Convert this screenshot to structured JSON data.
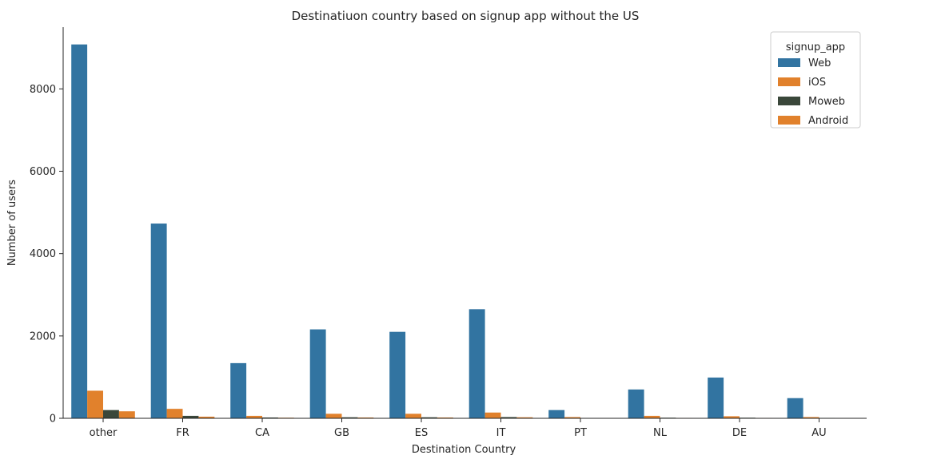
{
  "chart_data": {
    "type": "bar",
    "title": "Destinatiuon country based on signup app without the US",
    "xlabel": "Destination Country",
    "ylabel": "Number of users",
    "ylim": [
      0,
      9500
    ],
    "yticks": [
      0,
      2000,
      4000,
      6000,
      8000
    ],
    "grid": false,
    "legend": {
      "title": "signup_app",
      "placement": "top-right"
    },
    "categories": [
      "other",
      "FR",
      "CA",
      "GB",
      "ES",
      "IT",
      "PT",
      "NL",
      "DE",
      "AU"
    ],
    "series": [
      {
        "name": "Web",
        "color": "#3274a1",
        "values": [
          9080,
          4730,
          1340,
          2160,
          2100,
          2650,
          200,
          700,
          990,
          490
        ]
      },
      {
        "name": "iOS",
        "color": "#e1812c",
        "values": [
          670,
          230,
          60,
          110,
          110,
          140,
          30,
          60,
          50,
          30
        ]
      },
      {
        "name": "Moweb",
        "color": "#3a473a",
        "values": [
          200,
          60,
          20,
          25,
          25,
          30,
          5,
          15,
          15,
          10
        ]
      },
      {
        "name": "Android",
        "color": "#e1812c",
        "values": [
          170,
          40,
          15,
          20,
          20,
          25,
          5,
          10,
          10,
          5
        ]
      }
    ]
  }
}
